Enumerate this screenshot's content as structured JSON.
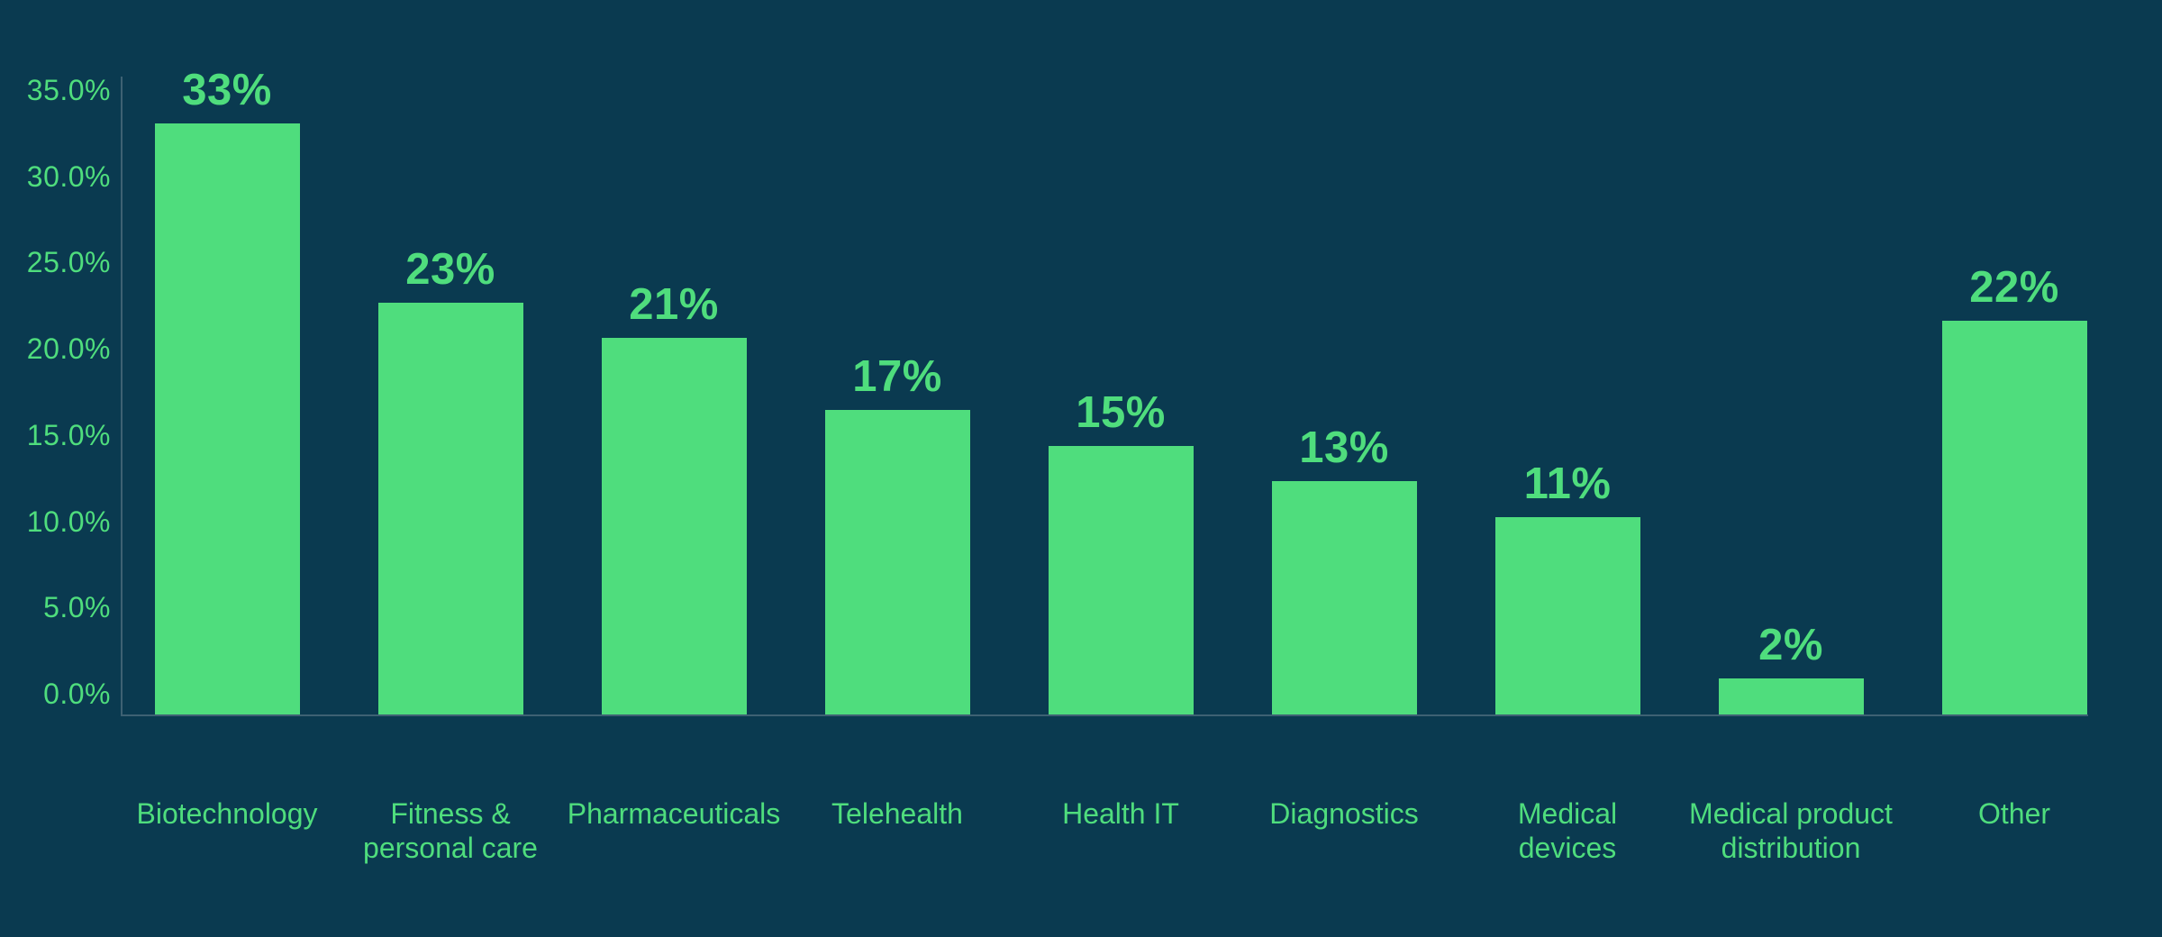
{
  "chart_data": {
    "type": "bar",
    "title": "",
    "xlabel": "",
    "ylabel": "",
    "categories": [
      "Biotechnology",
      "Fitness & personal care",
      "Pharmaceuticals",
      "Telehealth",
      "Health IT",
      "Diagnostics",
      "Medical devices",
      "Medical product distribution",
      "Other"
    ],
    "category_lines": [
      [
        "Biotechnology"
      ],
      [
        "Fitness &",
        "personal care"
      ],
      [
        "Pharmaceuticals"
      ],
      [
        "Telehealth"
      ],
      [
        "Health IT"
      ],
      [
        "Diagnostics"
      ],
      [
        "Medical",
        "devices"
      ],
      [
        "Medical product",
        "distribution"
      ],
      [
        "Other"
      ]
    ],
    "values": [
      33,
      23,
      21,
      17,
      15,
      13,
      11,
      2,
      22
    ],
    "value_labels": [
      "33%",
      "23%",
      "21%",
      "17%",
      "15%",
      "13%",
      "11%",
      "2%",
      "22%"
    ],
    "ylim": [
      0,
      35
    ],
    "ytick_values": [
      0,
      5,
      10,
      15,
      20,
      25,
      30,
      35
    ],
    "ytick_labels": [
      "0.0%",
      "5.0%",
      "10.0%",
      "15.0%",
      "20.0%",
      "25.0%",
      "30.0%",
      "35.0%"
    ],
    "grid": "off",
    "legend": "none",
    "colors": {
      "background": "#0a3a50",
      "bar": "#4fdd7d",
      "text": "#4fdd7d",
      "axis": "#3e6173"
    }
  }
}
